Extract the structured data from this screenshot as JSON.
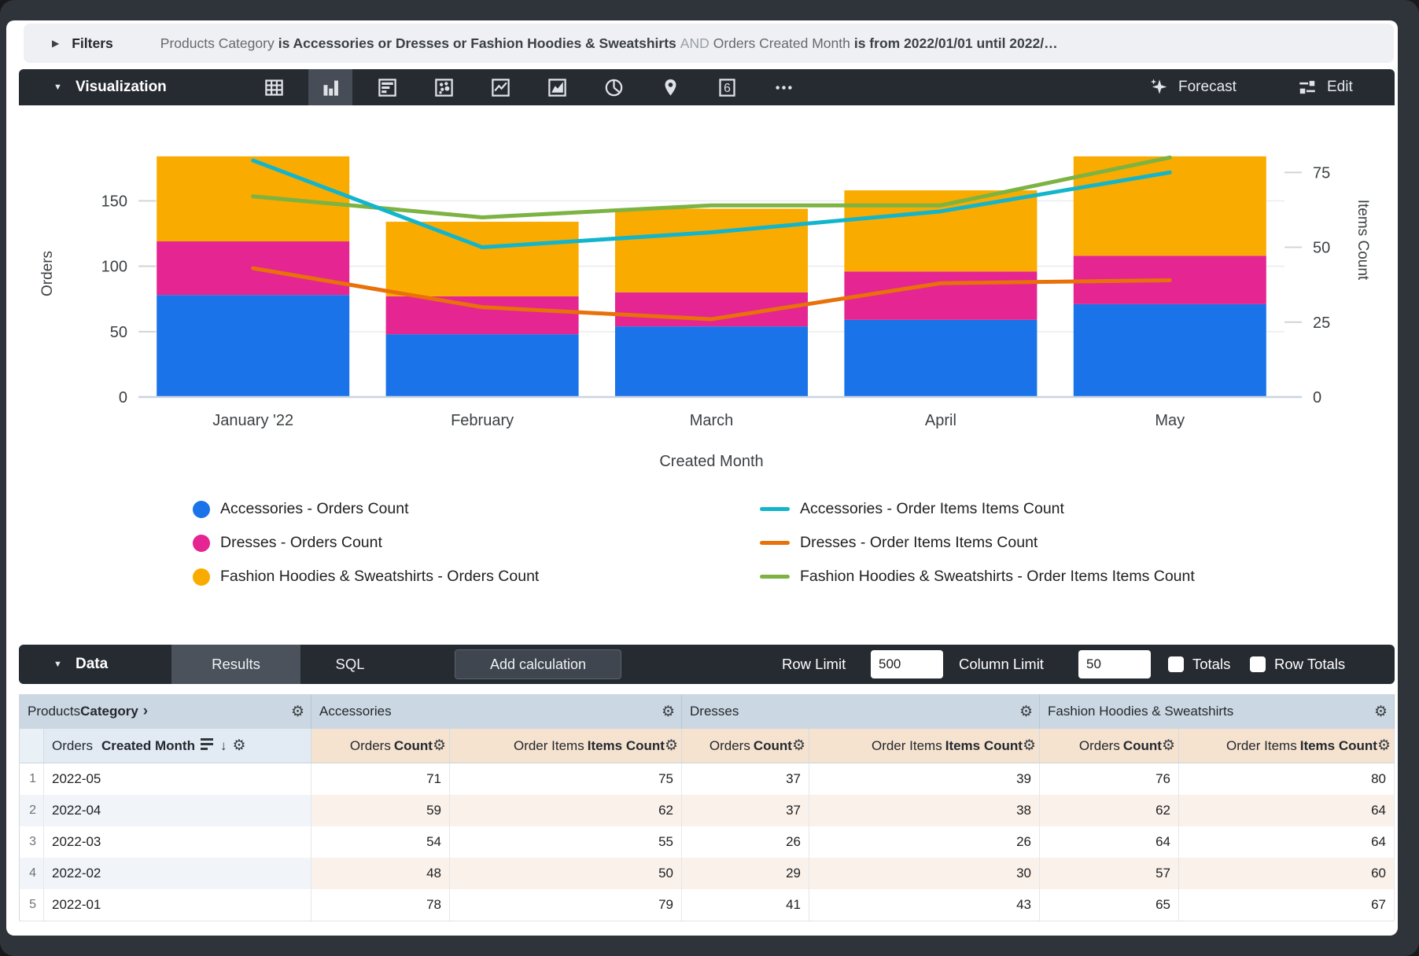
{
  "filter_bar": {
    "label": "Filters",
    "segments": [
      {
        "text": "Products Category",
        "style": "field"
      },
      {
        "text": "is Accessories or Dresses or Fashion Hoodies & Sweatshirts",
        "style": "value"
      },
      {
        "text": "AND",
        "style": "conjunction"
      },
      {
        "text": "Orders Created Month",
        "style": "field"
      },
      {
        "text": "is from 2022/01/01 until 2022/…",
        "style": "value"
      }
    ]
  },
  "viz_toolbar": {
    "label": "Visualization",
    "chart_type_icons": [
      {
        "name": "table-chart-icon",
        "selected": false
      },
      {
        "name": "column-chart-icon",
        "selected": true
      },
      {
        "name": "bar-chart-icon",
        "selected": false
      },
      {
        "name": "scatter-chart-icon",
        "selected": false
      },
      {
        "name": "line-chart-icon",
        "selected": false
      },
      {
        "name": "area-chart-icon",
        "selected": false
      },
      {
        "name": "pie-chart-icon",
        "selected": false
      },
      {
        "name": "map-chart-icon",
        "selected": false
      },
      {
        "name": "single-value-icon",
        "selected": false
      },
      {
        "name": "more-options-icon",
        "selected": false
      }
    ],
    "single_value_glyph": "6",
    "forecast_label": "Forecast",
    "edit_label": "Edit"
  },
  "chart_data": {
    "type": "combo: stacked bar + line, dual axis",
    "categories": [
      "January '22",
      "February",
      "March",
      "April",
      "May"
    ],
    "x_axis_label": "Created Month",
    "left_axis": {
      "label": "Orders",
      "ticks": [
        0,
        50,
        100,
        150
      ],
      "range": [
        0,
        223
      ]
    },
    "right_axis": {
      "label": "Items Count",
      "ticks": [
        0,
        25,
        50,
        75
      ],
      "range": [
        0,
        97.4
      ]
    },
    "bar_series": [
      {
        "name": "Accessories - Orders Count",
        "color": "#1a73e8",
        "values": [
          78,
          48,
          54,
          59,
          71
        ]
      },
      {
        "name": "Dresses - Orders Count",
        "color": "#e52592",
        "values": [
          41,
          29,
          26,
          37,
          37
        ]
      },
      {
        "name": "Fashion Hoodies & Sweatshirts - Orders Count",
        "color": "#f9ab00",
        "values": [
          65,
          57,
          64,
          62,
          76
        ]
      }
    ],
    "line_series": [
      {
        "name": "Accessories - Order Items Items Count",
        "color": "#12b5cb",
        "values": [
          79,
          50,
          55,
          62,
          75
        ]
      },
      {
        "name": "Dresses - Order Items Items Count",
        "color": "#e8710a",
        "values": [
          43,
          30,
          26,
          38,
          39
        ]
      },
      {
        "name": "Fashion Hoodies & Sweatshirts - Order Items Items Count",
        "color": "#7cb342",
        "values": [
          67,
          60,
          64,
          64,
          80
        ]
      }
    ],
    "grid": "horizontal gridlines at left-axis ticks",
    "legend_position": "bottom, two columns"
  },
  "legend": {
    "bar_items": [
      {
        "label": "Accessories - Orders Count",
        "color": "#1a73e8"
      },
      {
        "label": "Dresses - Orders Count",
        "color": "#e52592"
      },
      {
        "label": "Fashion Hoodies & Sweatshirts - Orders Count",
        "color": "#f9ab00"
      }
    ],
    "line_items": [
      {
        "label": "Accessories - Order Items Items Count",
        "color": "#12b5cb"
      },
      {
        "label": "Dresses - Order Items Items Count",
        "color": "#e8710a"
      },
      {
        "label": "Fashion Hoodies & Sweatshirts - Order Items Items Count",
        "color": "#7cb342"
      }
    ]
  },
  "data_toolbar": {
    "label": "Data",
    "tabs": [
      {
        "label": "Results",
        "active": true
      },
      {
        "label": "SQL",
        "active": false
      }
    ],
    "add_calculation_label": "Add calculation",
    "row_limit_label": "Row Limit",
    "row_limit_value": "500",
    "column_limit_label": "Column Limit",
    "column_limit_value": "50",
    "totals_label": "Totals",
    "totals_checked": false,
    "row_totals_label": "Row Totals",
    "row_totals_checked": false
  },
  "results_table": {
    "group_headers": [
      {
        "regular": "Products",
        "bold": "Category",
        "chevron": "›"
      },
      {
        "label": "Accessories"
      },
      {
        "label": "Dresses"
      },
      {
        "label": "Fashion Hoodies & Sweatshirts"
      }
    ],
    "dimension_header": {
      "regular": "Orders",
      "bold": "Created Month",
      "sort_arrow": "↓"
    },
    "measure_header_pattern": [
      {
        "regular": "Orders",
        "bold": "Count"
      },
      {
        "regular": "Order Items",
        "bold": "Items Count"
      }
    ],
    "rows": [
      {
        "index": 1,
        "dimension": "2022-05",
        "values": [
          71,
          75,
          37,
          39,
          76,
          80
        ]
      },
      {
        "index": 2,
        "dimension": "2022-04",
        "values": [
          59,
          62,
          37,
          38,
          62,
          64
        ]
      },
      {
        "index": 3,
        "dimension": "2022-03",
        "values": [
          54,
          55,
          26,
          26,
          64,
          64
        ]
      },
      {
        "index": 4,
        "dimension": "2022-02",
        "values": [
          48,
          50,
          29,
          30,
          57,
          60
        ]
      },
      {
        "index": 5,
        "dimension": "2022-01",
        "values": [
          78,
          79,
          41,
          43,
          65,
          67
        ]
      }
    ],
    "gear_glyph": "⚙"
  }
}
